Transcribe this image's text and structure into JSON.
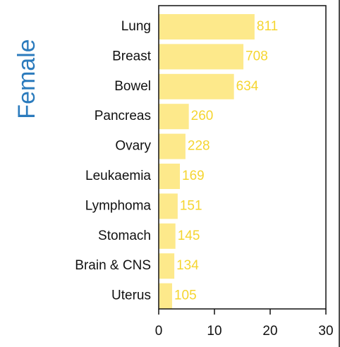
{
  "chart_data": {
    "type": "bar",
    "orientation": "horizontal",
    "ylabel": "Female",
    "categories": [
      "Lung",
      "Breast",
      "Bowel",
      "Pancreas",
      "Ovary",
      "Leukaemia",
      "Lymphoma",
      "Stomach",
      "Brain & CNS",
      "Uterus"
    ],
    "values": [
      17.2,
      15.2,
      13.5,
      5.4,
      4.8,
      3.8,
      3.4,
      3.0,
      2.8,
      2.4
    ],
    "counts": [
      811,
      708,
      634,
      260,
      228,
      169,
      151,
      145,
      134,
      105
    ],
    "color": "#fde98b",
    "count_color": "#f5d530",
    "ylabel_color": "#2b7bbd",
    "xlim": [
      0,
      30
    ],
    "xticks": [
      0,
      10,
      20,
      30
    ]
  }
}
